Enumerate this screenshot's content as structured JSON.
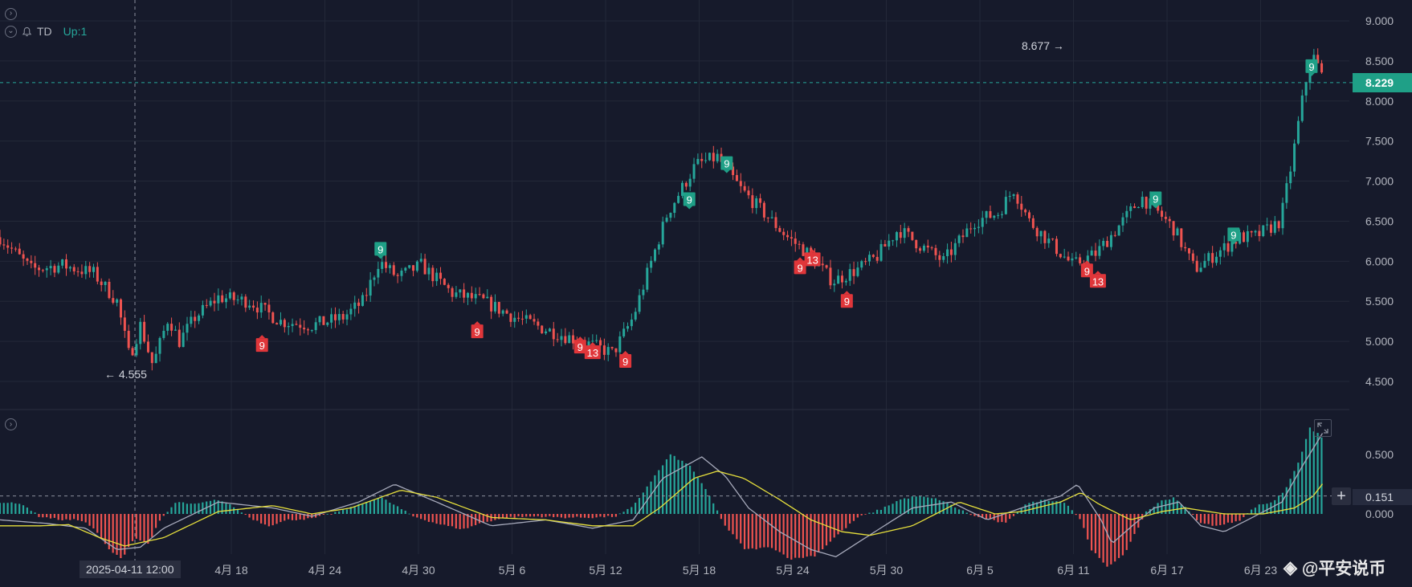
{
  "indicator": {
    "name": "TD",
    "value": "Up:1"
  },
  "last_price_label": "8.229",
  "macd_value_label": "0.151",
  "crosshair_date": "2025-04-11 12:00",
  "high_label": "8.677 →",
  "low_label": "← 4.555",
  "watermark": "@平安说币",
  "colors": {
    "up": "#26a69a",
    "down": "#ef5350",
    "background": "#161a2b",
    "signal": "#e7e03c",
    "macd_line": "#a7aabb"
  },
  "icons": [
    "chevron-right-icon",
    "chevron-down-icon",
    "bell-icon",
    "expand-icon",
    "plus-icon",
    "binance-icon"
  ],
  "chart_data": [
    {
      "type": "candlestick",
      "y_axis_ticks": [
        "9.000",
        "8.500",
        "8.000",
        "7.500",
        "7.000",
        "6.500",
        "6.000",
        "5.500",
        "5.000",
        "4.500"
      ],
      "x_axis_ticks": [
        "4月 18",
        "4月 24",
        "4月 30",
        "5月 6",
        "5月 12",
        "5月 18",
        "5月 24",
        "5月 30",
        "6月 5",
        "6月 11",
        "6月 17",
        "6月 23"
      ],
      "ylim": [
        4.2,
        9.2
      ],
      "last_price": 8.229,
      "high": 8.677,
      "low": 4.555,
      "price_path": [
        {
          "t": 0,
          "p": 6.3
        },
        {
          "t": 2,
          "p": 5.9
        },
        {
          "t": 4,
          "p": 5.95
        },
        {
          "t": 6,
          "p": 5.85
        },
        {
          "t": 7.5,
          "p": 5.5
        },
        {
          "t": 8.3,
          "p": 4.8
        },
        {
          "t": 9,
          "p": 5.2
        },
        {
          "t": 9.8,
          "p": 4.7
        },
        {
          "t": 10.8,
          "p": 5.3
        },
        {
          "t": 11.5,
          "p": 5.0
        },
        {
          "t": 12.5,
          "p": 5.3
        },
        {
          "t": 14,
          "p": 5.55
        },
        {
          "t": 16,
          "p": 5.5
        },
        {
          "t": 18,
          "p": 5.25
        },
        {
          "t": 20,
          "p": 5.2
        },
        {
          "t": 22,
          "p": 5.3
        },
        {
          "t": 23.3,
          "p": 5.5
        },
        {
          "t": 24.3,
          "p": 6.0
        },
        {
          "t": 25.5,
          "p": 5.8
        },
        {
          "t": 27,
          "p": 5.95
        },
        {
          "t": 29,
          "p": 5.6
        },
        {
          "t": 31,
          "p": 5.5
        },
        {
          "t": 33,
          "p": 5.3
        },
        {
          "t": 35,
          "p": 5.15
        },
        {
          "t": 36.5,
          "p": 5.05
        },
        {
          "t": 38,
          "p": 4.95
        },
        {
          "t": 39.3,
          "p": 4.85
        },
        {
          "t": 40.6,
          "p": 5.3
        },
        {
          "t": 41.6,
          "p": 5.9
        },
        {
          "t": 42.8,
          "p": 6.6
        },
        {
          "t": 44.6,
          "p": 7.2
        },
        {
          "t": 46,
          "p": 7.3
        },
        {
          "t": 47.5,
          "p": 6.9
        },
        {
          "t": 49,
          "p": 6.6
        },
        {
          "t": 50.5,
          "p": 6.3
        },
        {
          "t": 51.8,
          "p": 6.1
        },
        {
          "t": 53.4,
          "p": 5.75
        },
        {
          "t": 55,
          "p": 5.9
        },
        {
          "t": 56.2,
          "p": 6.05
        },
        {
          "t": 57.6,
          "p": 6.4
        },
        {
          "t": 59,
          "p": 6.2
        },
        {
          "t": 60.5,
          "p": 6.0
        },
        {
          "t": 62.5,
          "p": 6.5
        },
        {
          "t": 64,
          "p": 6.6
        },
        {
          "t": 65,
          "p": 6.9
        },
        {
          "t": 66,
          "p": 6.5
        },
        {
          "t": 67.5,
          "p": 6.2
        },
        {
          "t": 68.8,
          "p": 5.95
        },
        {
          "t": 70.3,
          "p": 6.1
        },
        {
          "t": 72,
          "p": 6.5
        },
        {
          "t": 73.2,
          "p": 6.8
        },
        {
          "t": 74.3,
          "p": 6.6
        },
        {
          "t": 75.3,
          "p": 6.4
        },
        {
          "t": 76.6,
          "p": 5.9
        },
        {
          "t": 78,
          "p": 6.1
        },
        {
          "t": 79.5,
          "p": 6.3
        },
        {
          "t": 80.4,
          "p": 6.3
        },
        {
          "t": 81.3,
          "p": 6.4
        },
        {
          "t": 82.1,
          "p": 6.5
        },
        {
          "t": 82.8,
          "p": 7.2
        },
        {
          "t": 83.5,
          "p": 8.0
        },
        {
          "t": 84.1,
          "p": 8.6
        },
        {
          "t": 84.6,
          "p": 8.4
        },
        {
          "t": 84.9,
          "p": 8.229
        }
      ],
      "td_labels": [
        {
          "text": "9",
          "t": 24.4,
          "price": 6.15,
          "kind": "sell"
        },
        {
          "text": "9",
          "t": 16.8,
          "price": 4.95,
          "kind": "buy"
        },
        {
          "text": "9",
          "t": 30.6,
          "price": 5.12,
          "kind": "buy"
        },
        {
          "text": "9",
          "t": 37.2,
          "price": 4.93,
          "kind": "buy"
        },
        {
          "text": "13",
          "t": 38.0,
          "price": 4.86,
          "kind": "buy"
        },
        {
          "text": "9",
          "t": 40.1,
          "price": 4.75,
          "kind": "buy"
        },
        {
          "text": "9",
          "t": 44.2,
          "price": 6.77,
          "kind": "sell"
        },
        {
          "text": "9",
          "t": 46.6,
          "price": 7.22,
          "kind": "sell"
        },
        {
          "text": "9",
          "t": 51.3,
          "price": 5.92,
          "kind": "buy"
        },
        {
          "text": "13",
          "t": 52.1,
          "price": 6.02,
          "kind": "buy"
        },
        {
          "text": "9",
          "t": 54.3,
          "price": 5.5,
          "kind": "buy"
        },
        {
          "text": "9",
          "t": 69.7,
          "price": 5.88,
          "kind": "buy"
        },
        {
          "text": "13",
          "t": 70.4,
          "price": 5.75,
          "kind": "buy"
        },
        {
          "text": "9",
          "t": 74.1,
          "price": 6.78,
          "kind": "sell"
        },
        {
          "text": "9",
          "t": 79.1,
          "price": 6.33,
          "kind": "sell"
        },
        {
          "text": "9",
          "t": 84.1,
          "price": 8.43,
          "kind": "sell"
        }
      ]
    },
    {
      "type": "macd",
      "y_axis_ticks": [
        "0.500",
        "0.000"
      ],
      "ylim": [
        -0.45,
        0.9
      ],
      "current_value": 0.151,
      "histogram_path": [
        {
          "t": 0,
          "v": 0.1
        },
        {
          "t": 1.5,
          "v": 0.08
        },
        {
          "t": 2.5,
          "v": -0.02
        },
        {
          "t": 4,
          "v": -0.05
        },
        {
          "t": 5.2,
          "v": -0.05
        },
        {
          "t": 6,
          "v": -0.12
        },
        {
          "t": 7,
          "v": -0.3
        },
        {
          "t": 7.8,
          "v": -0.38
        },
        {
          "t": 8.6,
          "v": -0.2
        },
        {
          "t": 9.5,
          "v": -0.25
        },
        {
          "t": 10.3,
          "v": -0.05
        },
        {
          "t": 11.3,
          "v": 0.1
        },
        {
          "t": 12.5,
          "v": 0.08
        },
        {
          "t": 14,
          "v": 0.12
        },
        {
          "t": 15,
          "v": 0.06
        },
        {
          "t": 16,
          "v": -0.03
        },
        {
          "t": 17.2,
          "v": -0.1
        },
        {
          "t": 18.5,
          "v": -0.05
        },
        {
          "t": 20,
          "v": -0.04
        },
        {
          "t": 22,
          "v": 0.03
        },
        {
          "t": 23.5,
          "v": 0.1
        },
        {
          "t": 24.4,
          "v": 0.14
        },
        {
          "t": 25.5,
          "v": 0.06
        },
        {
          "t": 26.5,
          "v": -0.02
        },
        {
          "t": 28,
          "v": -0.08
        },
        {
          "t": 29.7,
          "v": -0.13
        },
        {
          "t": 31,
          "v": -0.07
        },
        {
          "t": 32.5,
          "v": -0.03
        },
        {
          "t": 34.5,
          "v": -0.02
        },
        {
          "t": 36,
          "v": -0.03
        },
        {
          "t": 38,
          "v": -0.03
        },
        {
          "t": 39.5,
          "v": -0.02
        },
        {
          "t": 40.6,
          "v": 0.06
        },
        {
          "t": 41.6,
          "v": 0.25
        },
        {
          "t": 43,
          "v": 0.5
        },
        {
          "t": 44.3,
          "v": 0.4
        },
        {
          "t": 45.5,
          "v": 0.15
        },
        {
          "t": 46.5,
          "v": -0.1
        },
        {
          "t": 47.8,
          "v": -0.3
        },
        {
          "t": 49.5,
          "v": -0.28
        },
        {
          "t": 50.7,
          "v": -0.38
        },
        {
          "t": 52.3,
          "v": -0.35
        },
        {
          "t": 53.5,
          "v": -0.2
        },
        {
          "t": 55,
          "v": -0.03
        },
        {
          "t": 56.5,
          "v": 0.04
        },
        {
          "t": 57.7,
          "v": 0.12
        },
        {
          "t": 58.8,
          "v": 0.15
        },
        {
          "t": 60.3,
          "v": 0.12
        },
        {
          "t": 61.5,
          "v": 0.04
        },
        {
          "t": 62.5,
          "v": -0.02
        },
        {
          "t": 63.8,
          "v": -0.06
        },
        {
          "t": 64.5,
          "v": -0.08
        },
        {
          "t": 65.7,
          "v": 0.08
        },
        {
          "t": 67,
          "v": 0.12
        },
        {
          "t": 68.3,
          "v": 0.1
        },
        {
          "t": 69.3,
          "v": -0.05
        },
        {
          "t": 70,
          "v": -0.3
        },
        {
          "t": 71,
          "v": -0.45
        },
        {
          "t": 72.2,
          "v": -0.32
        },
        {
          "t": 73.5,
          "v": 0.02
        },
        {
          "t": 74.5,
          "v": 0.11
        },
        {
          "t": 75.3,
          "v": 0.14
        },
        {
          "t": 75.8,
          "v": 0.08
        },
        {
          "t": 77,
          "v": -0.08
        },
        {
          "t": 78.2,
          "v": -0.1
        },
        {
          "t": 79.5,
          "v": -0.05
        },
        {
          "t": 80.6,
          "v": 0.07
        },
        {
          "t": 81.6,
          "v": 0.1
        },
        {
          "t": 82.4,
          "v": 0.2
        },
        {
          "t": 83.3,
          "v": 0.45
        },
        {
          "t": 84,
          "v": 0.72
        },
        {
          "t": 84.5,
          "v": 0.68
        },
        {
          "t": 84.9,
          "v": 0.62
        }
      ],
      "signal_path": [
        {
          "t": 0,
          "v": -0.1
        },
        {
          "t": 2.6,
          "v": -0.1
        },
        {
          "t": 4.4,
          "v": -0.09
        },
        {
          "t": 6.4,
          "v": -0.2
        },
        {
          "t": 8,
          "v": -0.27
        },
        {
          "t": 10.5,
          "v": -0.2
        },
        {
          "t": 14,
          "v": 0.02
        },
        {
          "t": 17.5,
          "v": 0.07
        },
        {
          "t": 20,
          "v": 0.0
        },
        {
          "t": 22.5,
          "v": 0.05
        },
        {
          "t": 25.7,
          "v": 0.2
        },
        {
          "t": 28,
          "v": 0.14
        },
        {
          "t": 31.5,
          "v": -0.03
        },
        {
          "t": 35,
          "v": -0.05
        },
        {
          "t": 38,
          "v": -0.1
        },
        {
          "t": 40.6,
          "v": -0.1
        },
        {
          "t": 42.3,
          "v": 0.05
        },
        {
          "t": 44.5,
          "v": 0.3
        },
        {
          "t": 46,
          "v": 0.36
        },
        {
          "t": 47.7,
          "v": 0.3
        },
        {
          "t": 50,
          "v": 0.12
        },
        {
          "t": 52,
          "v": -0.05
        },
        {
          "t": 54,
          "v": -0.15
        },
        {
          "t": 55.8,
          "v": -0.18
        },
        {
          "t": 58.5,
          "v": -0.1
        },
        {
          "t": 61.5,
          "v": 0.1
        },
        {
          "t": 63.8,
          "v": 0.0
        },
        {
          "t": 65.5,
          "v": 0.02
        },
        {
          "t": 68,
          "v": 0.1
        },
        {
          "t": 69.3,
          "v": 0.18
        },
        {
          "t": 70.5,
          "v": 0.08
        },
        {
          "t": 72.5,
          "v": -0.05
        },
        {
          "t": 74.5,
          "v": 0.02
        },
        {
          "t": 76,
          "v": 0.05
        },
        {
          "t": 78.5,
          "v": 0.0
        },
        {
          "t": 81,
          "v": 0.0
        },
        {
          "t": 83,
          "v": 0.05
        },
        {
          "t": 84.2,
          "v": 0.15
        },
        {
          "t": 84.9,
          "v": 0.27
        }
      ],
      "macd_path": [
        {
          "t": 0,
          "v": -0.05
        },
        {
          "t": 3,
          "v": -0.08
        },
        {
          "t": 5.5,
          "v": -0.12
        },
        {
          "t": 7.5,
          "v": -0.3
        },
        {
          "t": 9,
          "v": -0.28
        },
        {
          "t": 10.5,
          "v": -0.12
        },
        {
          "t": 14,
          "v": 0.1
        },
        {
          "t": 17.5,
          "v": 0.05
        },
        {
          "t": 20,
          "v": -0.02
        },
        {
          "t": 23,
          "v": 0.1
        },
        {
          "t": 25.3,
          "v": 0.25
        },
        {
          "t": 28,
          "v": 0.1
        },
        {
          "t": 31.5,
          "v": -0.1
        },
        {
          "t": 35,
          "v": -0.05
        },
        {
          "t": 38,
          "v": -0.12
        },
        {
          "t": 40.6,
          "v": -0.05
        },
        {
          "t": 42.5,
          "v": 0.3
        },
        {
          "t": 45,
          "v": 0.48
        },
        {
          "t": 46.5,
          "v": 0.32
        },
        {
          "t": 48,
          "v": 0.05
        },
        {
          "t": 50,
          "v": -0.15
        },
        {
          "t": 52,
          "v": -0.3
        },
        {
          "t": 53.6,
          "v": -0.36
        },
        {
          "t": 55.5,
          "v": -0.2
        },
        {
          "t": 58.5,
          "v": 0.05
        },
        {
          "t": 61,
          "v": 0.1
        },
        {
          "t": 63.3,
          "v": -0.05
        },
        {
          "t": 65.5,
          "v": 0.05
        },
        {
          "t": 68,
          "v": 0.15
        },
        {
          "t": 69.1,
          "v": 0.25
        },
        {
          "t": 70.6,
          "v": -0.05
        },
        {
          "t": 71.3,
          "v": -0.25
        },
        {
          "t": 72.6,
          "v": -0.1
        },
        {
          "t": 74,
          "v": 0.05
        },
        {
          "t": 75.6,
          "v": 0.1
        },
        {
          "t": 77,
          "v": -0.1
        },
        {
          "t": 78.5,
          "v": -0.15
        },
        {
          "t": 80,
          "v": -0.05
        },
        {
          "t": 82.2,
          "v": 0.1
        },
        {
          "t": 83.5,
          "v": 0.4
        },
        {
          "t": 84.9,
          "v": 0.7
        }
      ]
    }
  ]
}
